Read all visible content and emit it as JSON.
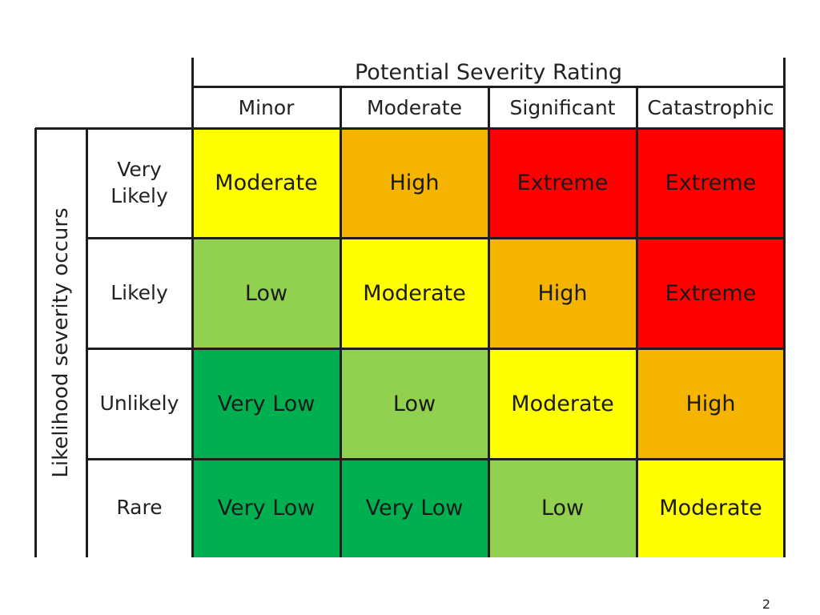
{
  "header": {
    "title": "Potential Severity Rating",
    "columns": [
      "Minor",
      "Moderate",
      "Significant",
      "Catastrophic"
    ]
  },
  "axis": {
    "likelihood_label": "Likelihood severity occurs"
  },
  "rows": [
    {
      "label": "Very\nLikely",
      "cells": [
        {
          "text": "Moderate",
          "color": "#ffff00"
        },
        {
          "text": "High",
          "color": "#f4b400"
        },
        {
          "text": "Extreme",
          "color": "#ff0000"
        },
        {
          "text": "Extreme",
          "color": "#ff0000"
        }
      ]
    },
    {
      "label": "Likely",
      "cells": [
        {
          "text": "Low",
          "color": "#92d050"
        },
        {
          "text": "Moderate",
          "color": "#ffff00"
        },
        {
          "text": "High",
          "color": "#f4b400"
        },
        {
          "text": "Extreme",
          "color": "#ff0000"
        }
      ]
    },
    {
      "label": "Unlikely",
      "cells": [
        {
          "text": "Very Low",
          "color": "#00b050"
        },
        {
          "text": "Low",
          "color": "#92d050"
        },
        {
          "text": "Moderate",
          "color": "#ffff00"
        },
        {
          "text": "High",
          "color": "#f4b400"
        }
      ]
    },
    {
      "label": "Rare",
      "cells": [
        {
          "text": "Very Low",
          "color": "#00b050"
        },
        {
          "text": "Very Low",
          "color": "#00b050"
        },
        {
          "text": "Low",
          "color": "#92d050"
        },
        {
          "text": "Moderate",
          "color": "#ffff00"
        }
      ]
    }
  ],
  "footer": {
    "page_number": "2"
  }
}
